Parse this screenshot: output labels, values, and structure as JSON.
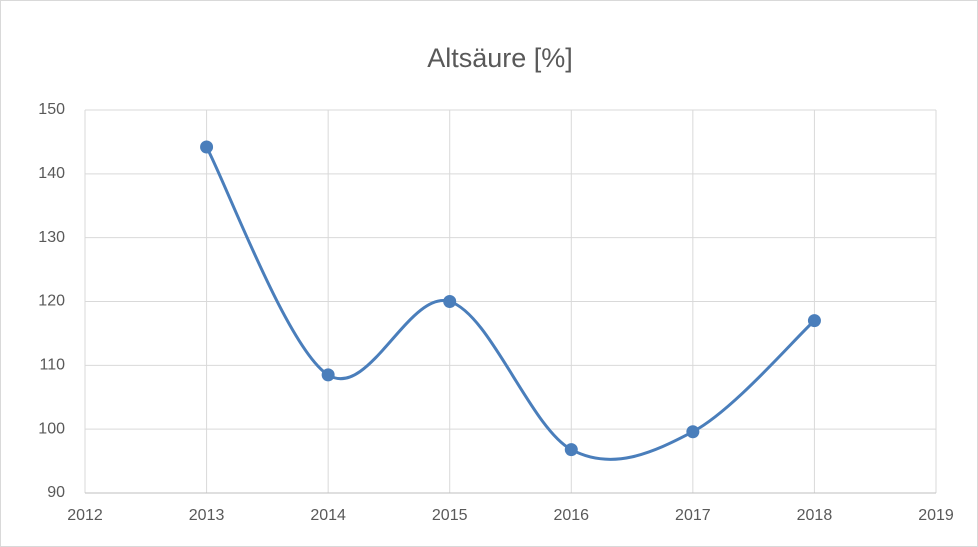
{
  "chart_data": {
    "type": "line",
    "title": "Altsäure [%]",
    "x": [
      2013,
      2014,
      2015,
      2016,
      2017,
      2018
    ],
    "series": [
      {
        "name": "Altsäure",
        "color": "#4a7ebb",
        "values": [
          144.2,
          108.5,
          120,
          96.8,
          99.6,
          117
        ]
      }
    ],
    "xlim": [
      2012,
      2019
    ],
    "xticks": [
      2012,
      2013,
      2014,
      2015,
      2016,
      2017,
      2018,
      2019
    ],
    "ylim": [
      90,
      150
    ],
    "yticks": [
      90,
      100,
      110,
      120,
      130,
      140,
      150
    ],
    "grid": true,
    "smooth": true,
    "markers": true
  }
}
